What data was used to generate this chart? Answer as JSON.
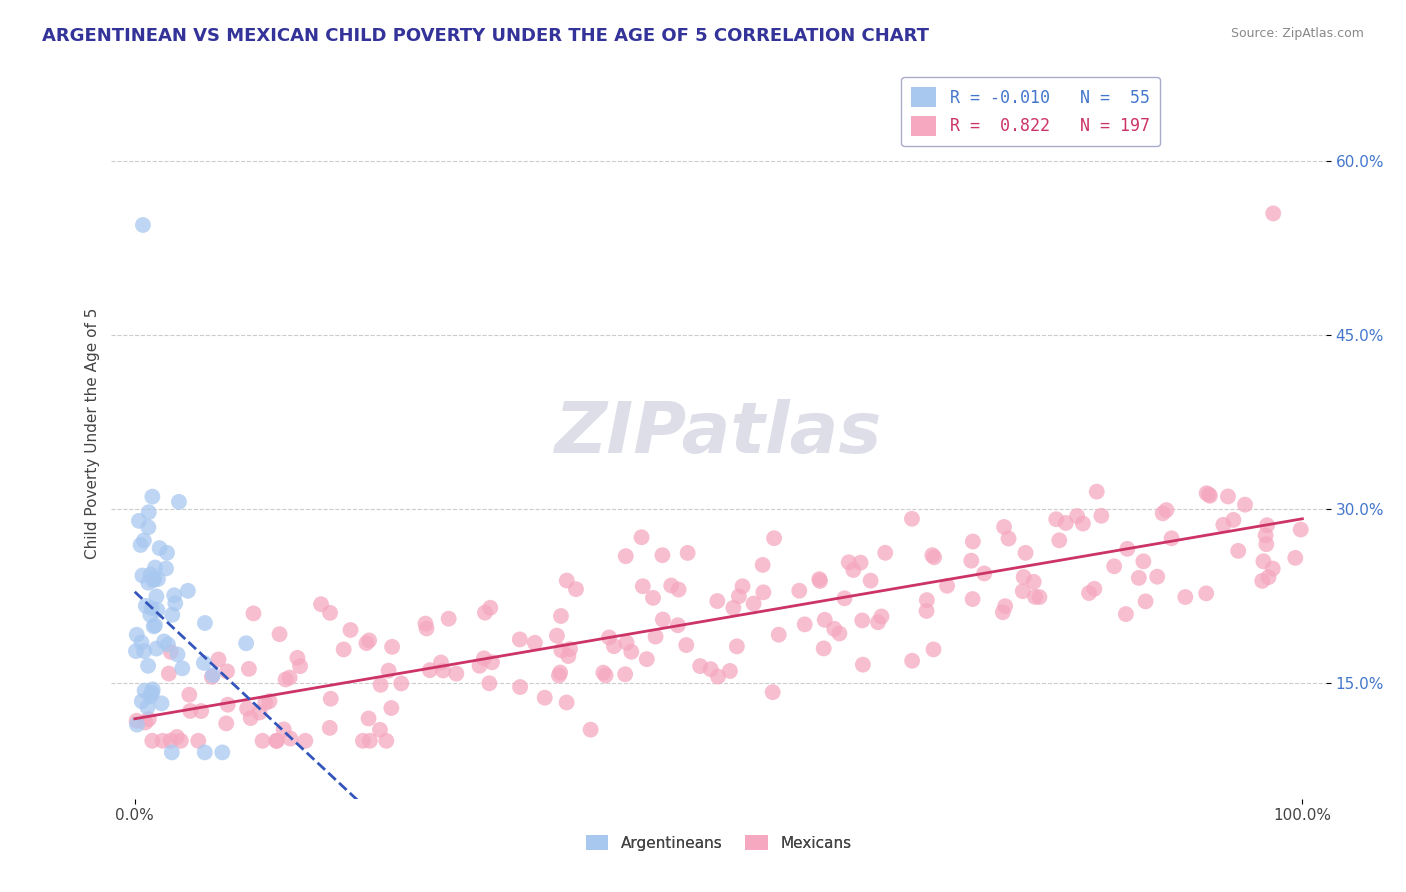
{
  "title": "ARGENTINEAN VS MEXICAN CHILD POVERTY UNDER THE AGE OF 5 CORRELATION CHART",
  "source_text": "Source: ZipAtlas.com",
  "ylabel": "Child Poverty Under the Age of 5",
  "xlim": [
    -0.02,
    1.02
  ],
  "ylim": [
    0.05,
    0.68
  ],
  "yticks": [
    0.15,
    0.3,
    0.45,
    0.6
  ],
  "ytick_labels": [
    "15.0%",
    "30.0%",
    "45.0%",
    "60.0%"
  ],
  "xtick_labels": [
    "0.0%",
    "100.0%"
  ],
  "grid_color": "#cccccc",
  "background_color": "#ffffff",
  "arg_color": "#a8c8f0",
  "mex_color": "#f5a8c0",
  "arg_line_color": "#3355bb",
  "mex_line_color": "#cc3366",
  "arg_R": -0.01,
  "arg_N": 55,
  "mex_R": 0.822,
  "mex_N": 197,
  "title_fontsize": 13,
  "axis_label_fontsize": 11,
  "tick_fontsize": 11,
  "legend_fontsize": 12
}
